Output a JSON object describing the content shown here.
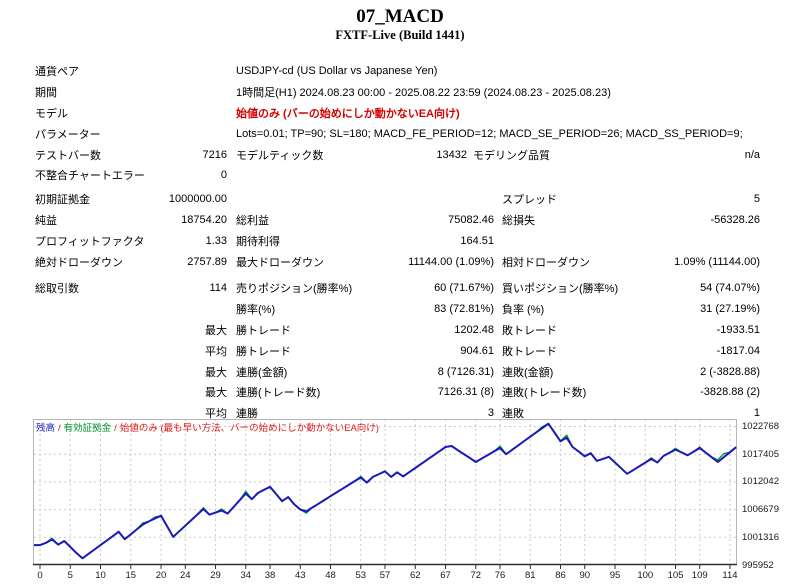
{
  "title": "07_MACD",
  "subtitle": "FXTF-Live (Build 1441)",
  "table": {
    "rows": [
      {
        "l1": "通貨ペア",
        "span": "USDJPY-cd (US Dollar vs Japanese Yen)"
      },
      {
        "l1": "期間",
        "span": "1時間足(H1) 2024.08.23 00:00 - 2025.08.22 23:59 (2024.08.23 - 2025.08.23)"
      },
      {
        "l1": "モデル",
        "span": "始値のみ (バーの始めにしか動かないEA向け)",
        "red": true
      },
      {
        "l1": "パラメーター",
        "span": "Lots=0.01; TP=90; SL=180; MACD_FE_PERIOD=12; MACD_SE_PERIOD=26; MACD_SS_PERIOD=9;"
      },
      {
        "l1": "テストバー数",
        "v1": "7216",
        "l2": "モデルティック数",
        "v2": "13432",
        "l3": "モデリング品質",
        "v3": "n/a",
        "variant": "a"
      },
      {
        "l1": "不整合チャートエラー",
        "v1": "0"
      },
      {
        "l1": "初期証拠金",
        "v1": "1000000.00",
        "l3": "スプレッド",
        "v3": "5",
        "gap": 3
      },
      {
        "l1": "純益",
        "v1": "18754.20",
        "l2": "総利益",
        "v2": "75082.46",
        "l3": "総損失",
        "v3": "-56328.26"
      },
      {
        "l1": "プロフィットファクタ",
        "v1": "1.33",
        "l2": "期待利得",
        "v2": "164.51"
      },
      {
        "l1": "絶対ドローダウン",
        "v1": "2757.89",
        "l2": "最大ドローダウン",
        "v2": "11144.00 (1.09%)",
        "l3": "相対ドローダウン",
        "v3": "1.09% (11144.00)"
      },
      {
        "l1": "総取引数",
        "v1": "114",
        "l2": "売りポジション(勝率%)",
        "v2": "60 (71.67%)",
        "l3": "買いポジション(勝率%)",
        "v3": "54 (74.07%)",
        "gap": 6
      },
      {
        "l2": "勝率(%)",
        "v2": "83 (72.81%)",
        "l3": "負率 (%)",
        "v3": "31 (27.19%)"
      },
      {
        "v1": "最大",
        "l2": "勝トレード",
        "v2": "1202.48",
        "l3": "敗トレード",
        "v3": "-1933.51"
      },
      {
        "v1": "平均",
        "l2": "勝トレード",
        "v2": "904.61",
        "l3": "敗トレード",
        "v3": "-1817.04"
      },
      {
        "v1": "最大",
        "l2": "連勝(金額)",
        "v2": "8 (7126.31)",
        "l3": "連敗(金額)",
        "v3": "2 (-3828.88)"
      },
      {
        "v1": "最大",
        "l2": "連勝(トレード数)",
        "v2": "7126.31 (8)",
        "l3": "連敗(トレード数)",
        "v3": "-3828.88 (2)"
      },
      {
        "v1": "平均",
        "l2": "連勝",
        "v2": "3",
        "l3": "連敗",
        "v3": "1"
      }
    ]
  },
  "chart_data": {
    "type": "line",
    "legend": {
      "balance": "残高",
      "equity": "有効証拠金",
      "sep": "/",
      "note": "始値のみ (最も早い方法、バーの始めにしか動かないEA向け)"
    },
    "colors": {
      "balance": "#1a1ab8",
      "equity": "#00962c",
      "note": "#e01818",
      "grid": "#c9c9c9",
      "border": "#b6b6b6",
      "axis": "#303030"
    },
    "x_ticks": [
      0,
      5,
      10,
      15,
      20,
      24,
      29,
      34,
      38,
      43,
      48,
      53,
      57,
      62,
      67,
      72,
      76,
      81,
      86,
      90,
      95,
      100,
      105,
      109,
      114
    ],
    "y_ticks": [
      1022768,
      1017405,
      1012042,
      1006679,
      1001316,
      995952
    ],
    "xlim": [
      0,
      115
    ],
    "ylim": [
      995952,
      1024300
    ],
    "grid": true,
    "legend_position": "top-left",
    "series": [
      {
        "name": "残高",
        "values": [
          999800,
          1000250,
          1000900,
          999900,
          1000600,
          999450,
          998300,
          997242,
          998100,
          998950,
          999800,
          1000650,
          1001500,
          1002400,
          1000950,
          1001900,
          1002850,
          1003800,
          1004400,
          1004950,
          1005500,
          1003450,
          1001400,
          1002480,
          1003560,
          1004640,
          1005720,
          1006800,
          1005700,
          1006100,
          1006500,
          1005900,
          1007200,
          1008500,
          1009800,
          1008700,
          1009900,
          1010500,
          1011100,
          1009700,
          1008300,
          1009100,
          1007700,
          1006700,
          1006350,
          1007080,
          1007810,
          1008540,
          1009270,
          1010000,
          1010730,
          1011460,
          1012190,
          1012900,
          1011900,
          1013000,
          1013550,
          1014100,
          1013000,
          1013900,
          1013100,
          1013910,
          1014730,
          1015540,
          1016360,
          1017170,
          1017990,
          1018800,
          1019000,
          1018200,
          1017450,
          1016680,
          1015900,
          1016580,
          1017250,
          1017930,
          1018600,
          1017400,
          1018250,
          1019100,
          1019950,
          1020800,
          1021640,
          1022470,
          1023300,
          1021600,
          1019900,
          1020600,
          1018800,
          1017900,
          1017000,
          1017600,
          1016100,
          1016500,
          1016900,
          1015800,
          1014700,
          1013600,
          1014330,
          1015050,
          1015780,
          1016500,
          1015800,
          1017050,
          1017680,
          1018300,
          1017750,
          1017200,
          1017900,
          1018600,
          1017700,
          1016800,
          1015900,
          1016850,
          1017800,
          1018754
        ]
      },
      {
        "name": "有効証拠金",
        "base": "残高",
        "offsets": {
          "2": 250,
          "17": 300,
          "19": 300,
          "27": 250,
          "30": 300,
          "34": 400,
          "44": -350,
          "53": 200,
          "76": 350,
          "83": 250,
          "87": 500,
          "101": 200,
          "105": 250,
          "109": 200,
          "112": 400,
          "113": 650
        }
      }
    ]
  }
}
